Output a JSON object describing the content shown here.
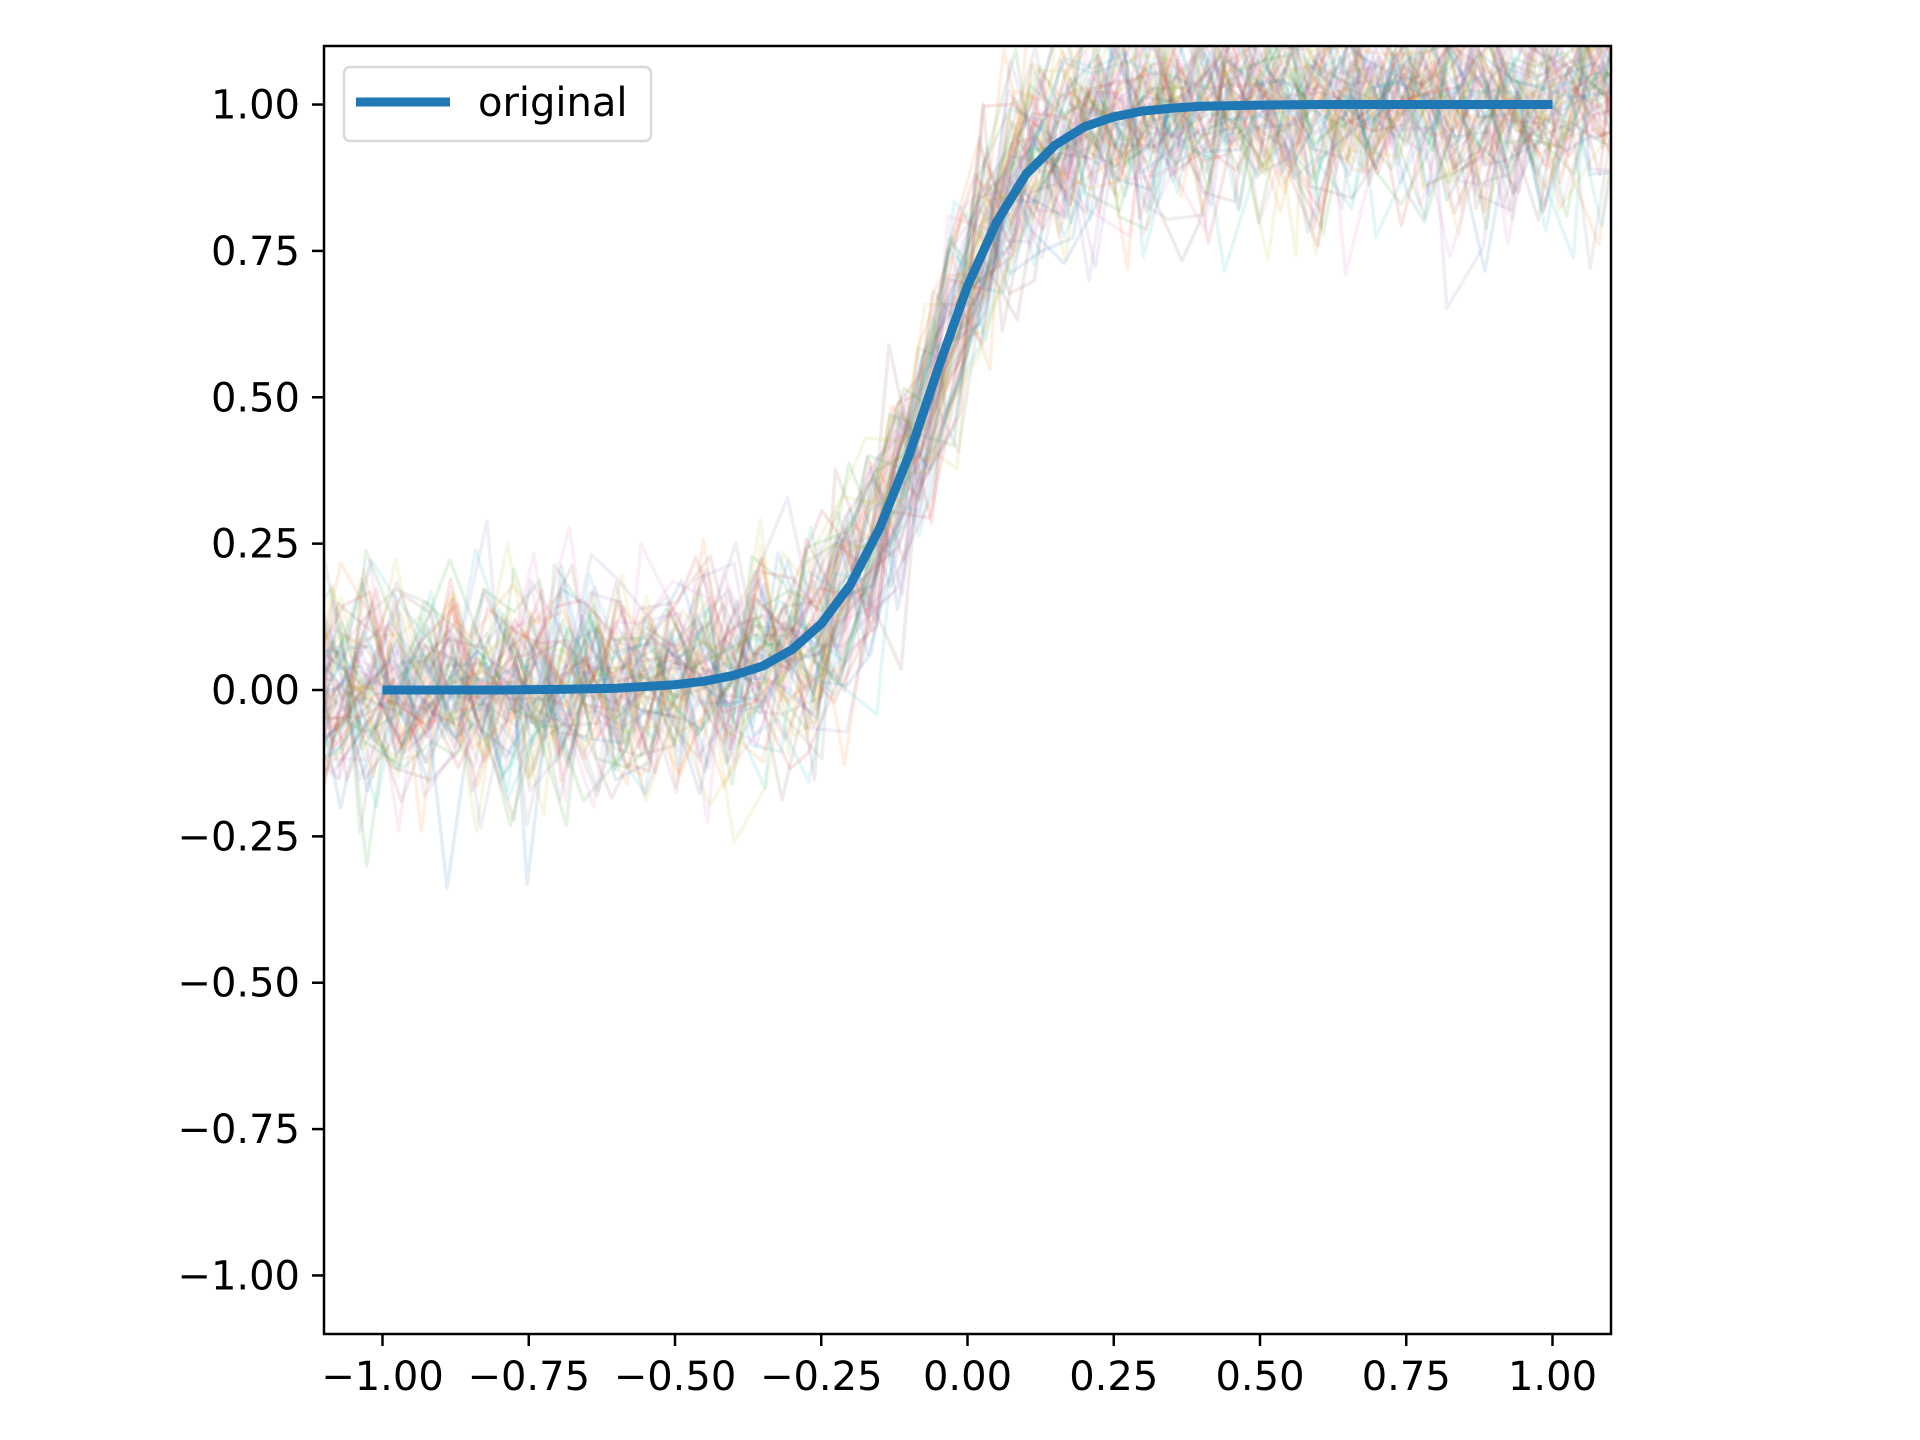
{
  "chart_data": {
    "type": "line",
    "title": "",
    "xlabel": "",
    "ylabel": "",
    "xlim": [
      -1.1,
      1.1
    ],
    "ylim": [
      -1.1,
      1.1
    ],
    "x_ticks": [
      -1.0,
      -0.75,
      -0.5,
      -0.25,
      0.0,
      0.25,
      0.5,
      0.75,
      1.0
    ],
    "x_tick_labels": [
      "−1.00",
      "−0.75",
      "−0.50",
      "−0.25",
      "0.00",
      "0.25",
      "0.50",
      "0.75",
      "1.00"
    ],
    "y_ticks": [
      1.0,
      0.75,
      0.5,
      0.25,
      0.0,
      -0.25,
      -0.5,
      -0.75,
      -1.0
    ],
    "y_tick_labels": [
      "1.00",
      "0.75",
      "0.50",
      "0.25",
      "0.00",
      "−0.25",
      "−0.50",
      "−0.75",
      "−1.00"
    ],
    "grid": false,
    "legend": {
      "placement": "upper-left",
      "entries": [
        "original"
      ]
    },
    "series": [
      {
        "name": "original",
        "color": "#1f77b4",
        "x": [
          -1.0,
          -0.9,
          -0.8,
          -0.7,
          -0.6,
          -0.5,
          -0.45,
          -0.4,
          -0.35,
          -0.3,
          -0.25,
          -0.2,
          -0.15,
          -0.1,
          -0.05,
          0.0,
          0.05,
          0.1,
          0.15,
          0.2,
          0.25,
          0.3,
          0.35,
          0.4,
          0.5,
          0.6,
          0.7,
          0.8,
          0.9,
          1.0
        ],
        "y": [
          0.0,
          0.0,
          0.0,
          0.001,
          0.003,
          0.009,
          0.015,
          0.025,
          0.041,
          0.069,
          0.113,
          0.18,
          0.277,
          0.401,
          0.55,
          0.69,
          0.8,
          0.881,
          0.931,
          0.962,
          0.979,
          0.989,
          0.994,
          0.997,
          0.999,
          1.0,
          1.0,
          1.0,
          1.0,
          1.0
        ]
      }
    ],
    "noise_band": {
      "description": "many thin translucent multicolor noisy sample traces around the sigmoid",
      "colors": [
        "#1f77b4",
        "#ff7f0e",
        "#2ca02c",
        "#d62728",
        "#9467bd",
        "#8c564b",
        "#e377c2",
        "#7f7f7f",
        "#bcbd22",
        "#17becf"
      ],
      "opacity": 0.12,
      "spread": 0.1
    }
  }
}
